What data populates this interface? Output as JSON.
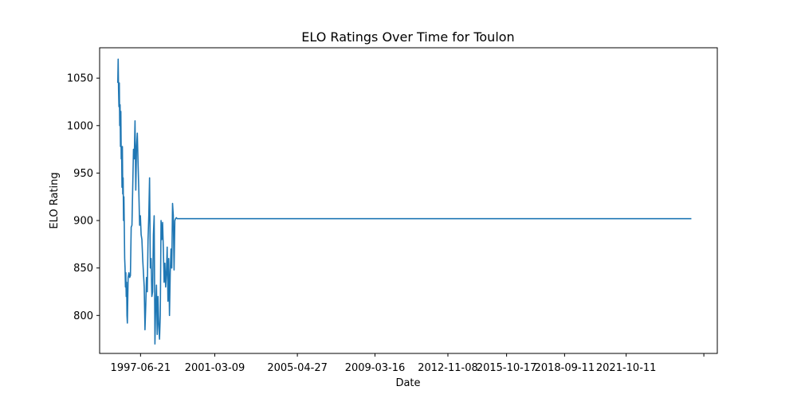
{
  "chart_data": {
    "type": "line",
    "title": "ELO Ratings Over Time for Toulon",
    "xlabel": "Date",
    "ylabel": "ELO Rating",
    "x_axis_type": "date",
    "xlim": [
      "1995-06-04",
      "2026-05-04"
    ],
    "ylim": [
      760,
      1082
    ],
    "yticks": [
      800,
      850,
      900,
      950,
      1000,
      1050
    ],
    "xticks": [
      {
        "date": "1997-06-21",
        "label": "1997-06-21"
      },
      {
        "date": "2001-03-09",
        "label": "2001-03-09"
      },
      {
        "date": "2005-04-27",
        "label": "2005-04-27"
      },
      {
        "date": "2009-03-16",
        "label": "2009-03-16"
      },
      {
        "date": "2012-11-08",
        "label": "2012-11-08"
      },
      {
        "date": "2015-10-17",
        "label": "2015-10-17"
      },
      {
        "date": "2018-09-11",
        "label": "2018-09-11"
      },
      {
        "date": "2021-10-11",
        "label": "2021-10-11"
      },
      {
        "date": "2025-08-31",
        "label": ""
      }
    ],
    "grid": false,
    "series": [
      {
        "color": "#1f77b4",
        "x": [
          "1996-05-01",
          "1996-05-08",
          "1996-05-15",
          "1996-05-22",
          "1996-05-29",
          "1996-06-05",
          "1996-06-12",
          "1996-06-19",
          "1996-06-26",
          "1996-07-03",
          "1996-07-10",
          "1996-07-17",
          "1996-07-24",
          "1996-07-31",
          "1996-08-07",
          "1996-08-14",
          "1996-08-21",
          "1996-08-28",
          "1996-09-04",
          "1996-09-11",
          "1996-09-18",
          "1996-09-25",
          "1996-10-02",
          "1996-10-09",
          "1996-10-16",
          "1996-10-23",
          "1996-11-06",
          "1996-11-20",
          "1996-12-04",
          "1996-12-18",
          "1997-01-01",
          "1997-01-15",
          "1997-01-29",
          "1997-02-12",
          "1997-02-26",
          "1997-03-12",
          "1997-03-26",
          "1997-04-09",
          "1997-04-23",
          "1997-05-07",
          "1997-05-21",
          "1997-06-04",
          "1997-06-18",
          "1997-07-02",
          "1997-07-16",
          "1997-07-30",
          "1997-08-13",
          "1997-08-27",
          "1997-09-10",
          "1997-09-24",
          "1997-10-08",
          "1997-10-22",
          "1997-11-05",
          "1997-11-19",
          "1997-12-03",
          "1997-12-17",
          "1997-12-31",
          "1998-01-14",
          "1998-01-28",
          "1998-02-11",
          "1998-02-25",
          "1998-03-11",
          "1998-03-25",
          "1998-04-08",
          "1998-04-22",
          "1998-05-06",
          "1998-05-20",
          "1998-06-03",
          "1998-06-17",
          "1998-07-01",
          "1998-07-15",
          "1998-07-29",
          "1998-08-12",
          "1998-08-26",
          "1998-09-09",
          "1998-09-23",
          "1998-10-07",
          "1998-10-21",
          "1998-11-04",
          "1998-11-18",
          "1998-12-02",
          "1998-12-16",
          "1998-12-30",
          "1999-01-13",
          "1999-01-27",
          "1999-02-10",
          "1999-02-24",
          "1999-03-10",
          "1999-03-24",
          "1999-04-07",
          "1999-04-21",
          "1999-05-05",
          "1999-05-19",
          "2025-01-15"
        ],
        "y": [
          1045,
          1070,
          1038,
          1020,
          1045,
          1000,
          1022,
          978,
          1015,
          965,
          975,
          935,
          978,
          928,
          945,
          900,
          925,
          895,
          860,
          850,
          830,
          845,
          820,
          835,
          800,
          792,
          840,
          845,
          840,
          842,
          893,
          895,
          935,
          975,
          965,
          1005,
          932,
          978,
          992,
          960,
          930,
          895,
          905,
          885,
          880,
          860,
          845,
          830,
          785,
          810,
          840,
          825,
          880,
          905,
          945,
          850,
          860,
          820,
          825,
          885,
          905,
          770,
          810,
          832,
          780,
          820,
          790,
          775,
          800,
          900,
          880,
          898,
          870,
          835,
          855,
          830,
          845,
          872,
          815,
          860,
          800,
          845,
          870,
          850,
          918,
          905,
          848,
          900,
          902,
          903,
          902,
          902,
          902,
          902
        ]
      }
    ]
  }
}
